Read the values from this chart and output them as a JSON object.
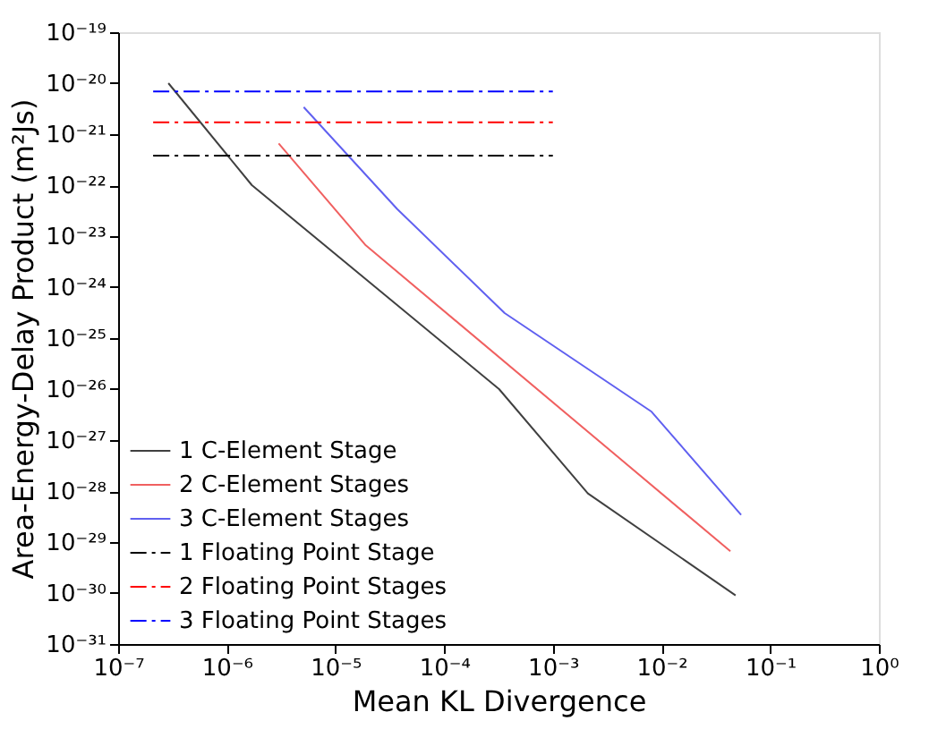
{
  "chart_data": {
    "type": "line",
    "xlabel": "Mean KL Divergence",
    "ylabel": "Area-Energy-Delay Product (m²Js)",
    "log": "xy",
    "grid": false,
    "legend": "bottom left",
    "marker": "none",
    "xlim": [
      1e-07,
      1
    ],
    "ylim": [
      1e-31,
      1e-19
    ],
    "xticks": [
      {
        "value": 1e-07,
        "label": "10⁻⁷"
      },
      {
        "value": 1e-06,
        "label": "10⁻⁶"
      },
      {
        "value": 1e-05,
        "label": "10⁻⁵"
      },
      {
        "value": 0.0001,
        "label": "10⁻⁴"
      },
      {
        "value": 0.001,
        "label": "10⁻³"
      },
      {
        "value": 0.01,
        "label": "10⁻²"
      },
      {
        "value": 0.1,
        "label": "10⁻¹"
      },
      {
        "value": 1,
        "label": "10⁰"
      }
    ],
    "yticks": [
      {
        "value": 1e-31,
        "label": "10⁻³¹"
      },
      {
        "value": 1e-30,
        "label": "10⁻³⁰"
      },
      {
        "value": 1e-29,
        "label": "10⁻²⁹"
      },
      {
        "value": 1e-28,
        "label": "10⁻²⁸"
      },
      {
        "value": 1e-27,
        "label": "10⁻²⁷"
      },
      {
        "value": 1e-26,
        "label": "10⁻²⁶"
      },
      {
        "value": 1e-25,
        "label": "10⁻²⁵"
      },
      {
        "value": 1e-24,
        "label": "10⁻²⁴"
      },
      {
        "value": 1e-23,
        "label": "10⁻²³"
      },
      {
        "value": 1e-22,
        "label": "10⁻²²"
      },
      {
        "value": 1e-21,
        "label": "10⁻²¹"
      },
      {
        "value": 1e-20,
        "label": "10⁻²⁰"
      },
      {
        "value": 1e-19,
        "label": "10⁻¹⁹"
      }
    ],
    "series": [
      {
        "name": "1 C-Element Stage",
        "color": "#404040",
        "line_style": "solid",
        "x": [
          2.9e-07,
          1.7e-06,
          0.00032,
          0.0021,
          0.048
        ],
        "values": [
          1e-20,
          1e-22,
          1e-26,
          9e-29,
          9e-31
        ]
      },
      {
        "name": "2 C-Element Stages",
        "color": "#f06060",
        "line_style": "solid",
        "x": [
          3e-06,
          1.9e-05,
          0.043
        ],
        "values": [
          6.6e-22,
          6.6e-24,
          6.6e-30
        ]
      },
      {
        "name": "3 C-Element Stages",
        "color": "#6060f0",
        "line_style": "solid",
        "x": [
          5.1e-06,
          3.7e-05,
          0.00036,
          0.0081,
          0.054
        ],
        "values": [
          3.4e-21,
          3.4e-23,
          3.1e-25,
          3.6e-27,
          3.4e-29
        ]
      },
      {
        "name": "1 Floating Point Stage",
        "color": "#000000",
        "line_style": "dashed",
        "x": [
          2.1e-07,
          0.001
        ],
        "values": [
          3.8e-22,
          3.8e-22
        ]
      },
      {
        "name": "2 Floating Point Stages",
        "color": "#ff0000",
        "line_style": "dashed",
        "x": [
          2.1e-07,
          0.001
        ],
        "values": [
          1.7e-21,
          1.7e-21
        ]
      },
      {
        "name": "3 Floating Point Stages",
        "color": "#0000ff",
        "line_style": "dashed",
        "x": [
          2.1e-07,
          0.001
        ],
        "values": [
          6.9e-21,
          6.9e-21
        ]
      }
    ]
  }
}
